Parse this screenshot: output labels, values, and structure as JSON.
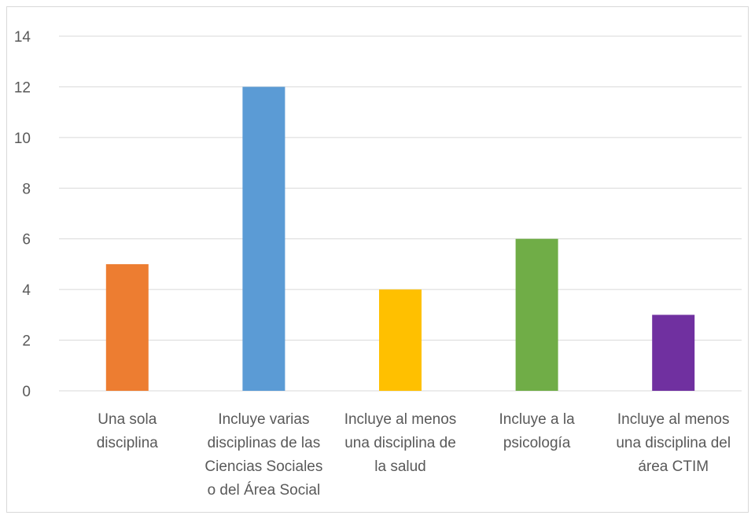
{
  "chart_data": {
    "type": "bar",
    "title": "",
    "xlabel": "",
    "ylabel": "",
    "ylim": [
      0,
      14
    ],
    "yticks": [
      0,
      2,
      4,
      6,
      8,
      10,
      12,
      14
    ],
    "grid": true,
    "legend": "none",
    "categories": [
      [
        "Una sola",
        "disciplina"
      ],
      [
        "Incluye varias",
        "disciplinas de las",
        "Ciencias Sociales",
        "o del Área Social"
      ],
      [
        "Incluye al menos",
        "una disciplina de",
        "la salud"
      ],
      [
        "Incluye a la",
        "psicología"
      ],
      [
        "Incluye al menos",
        "una disciplina del",
        "área CTIM"
      ]
    ],
    "values": [
      5,
      12,
      4,
      6,
      3
    ],
    "colors": [
      "#ed7d31",
      "#5b9bd5",
      "#ffc000",
      "#70ad47",
      "#7030a0"
    ]
  }
}
